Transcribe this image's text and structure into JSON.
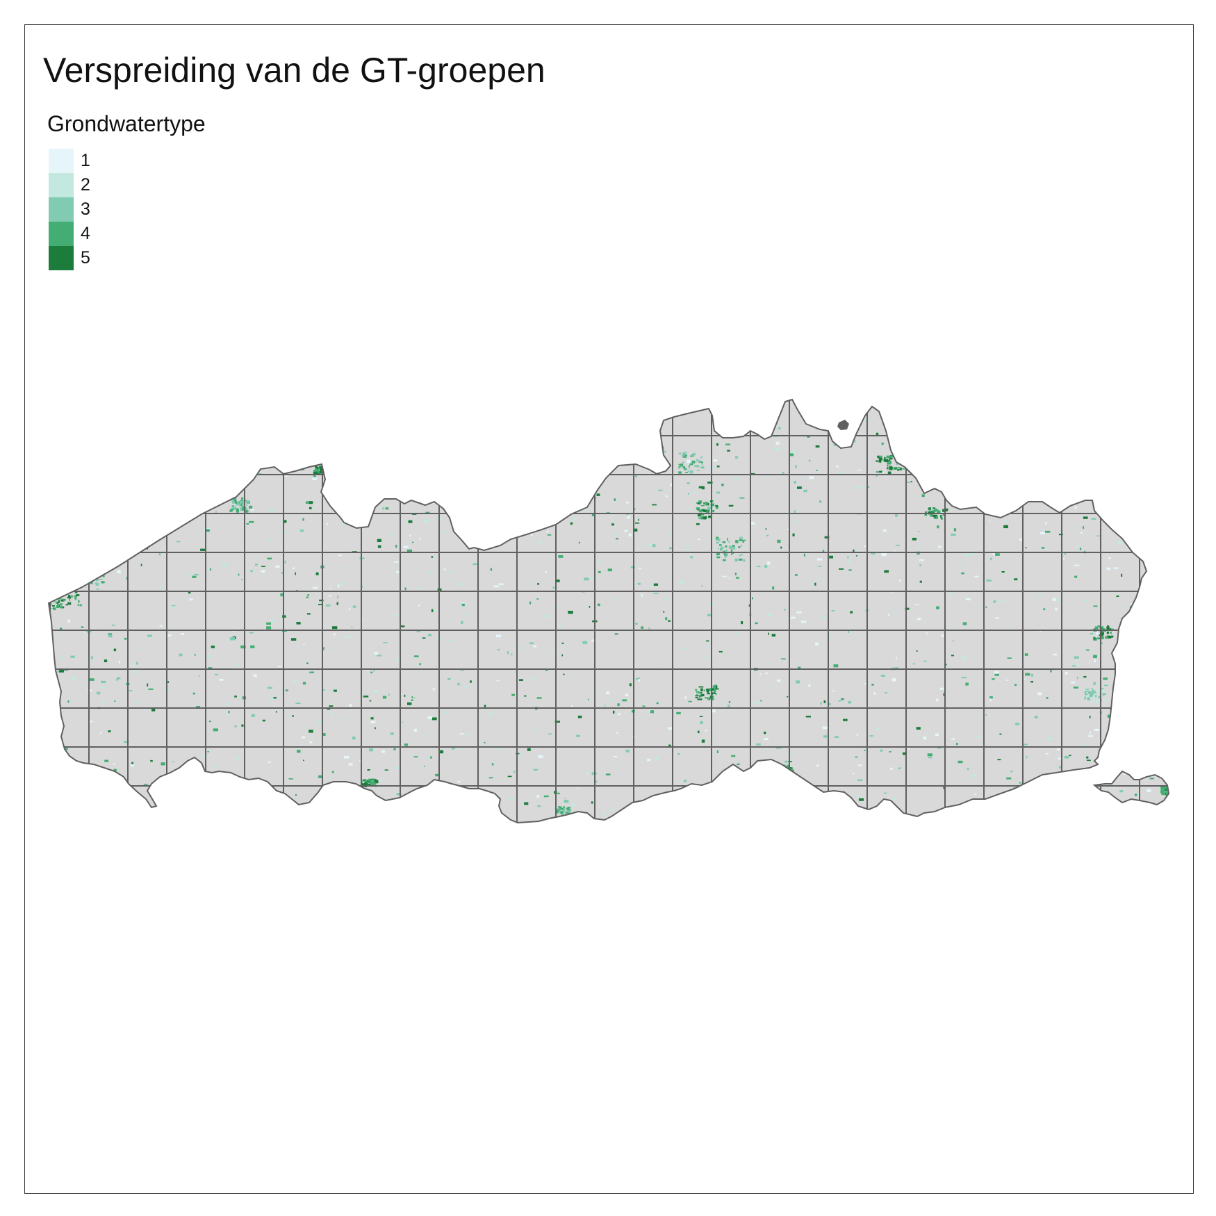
{
  "map": {
    "title": "Verspreiding van de GT-groepen",
    "legend": {
      "title": "Grondwatertype",
      "items": [
        {
          "label": "1",
          "color": "#e5f5f9"
        },
        {
          "label": "2",
          "color": "#c2e8df"
        },
        {
          "label": "3",
          "color": "#80cbb2"
        },
        {
          "label": "4",
          "color": "#43ad73"
        },
        {
          "label": "5",
          "color": "#1b7c3c"
        }
      ]
    },
    "region_fill": "#d9d9d9",
    "outline_color": "#606060",
    "grid_color": "#606060"
  }
}
